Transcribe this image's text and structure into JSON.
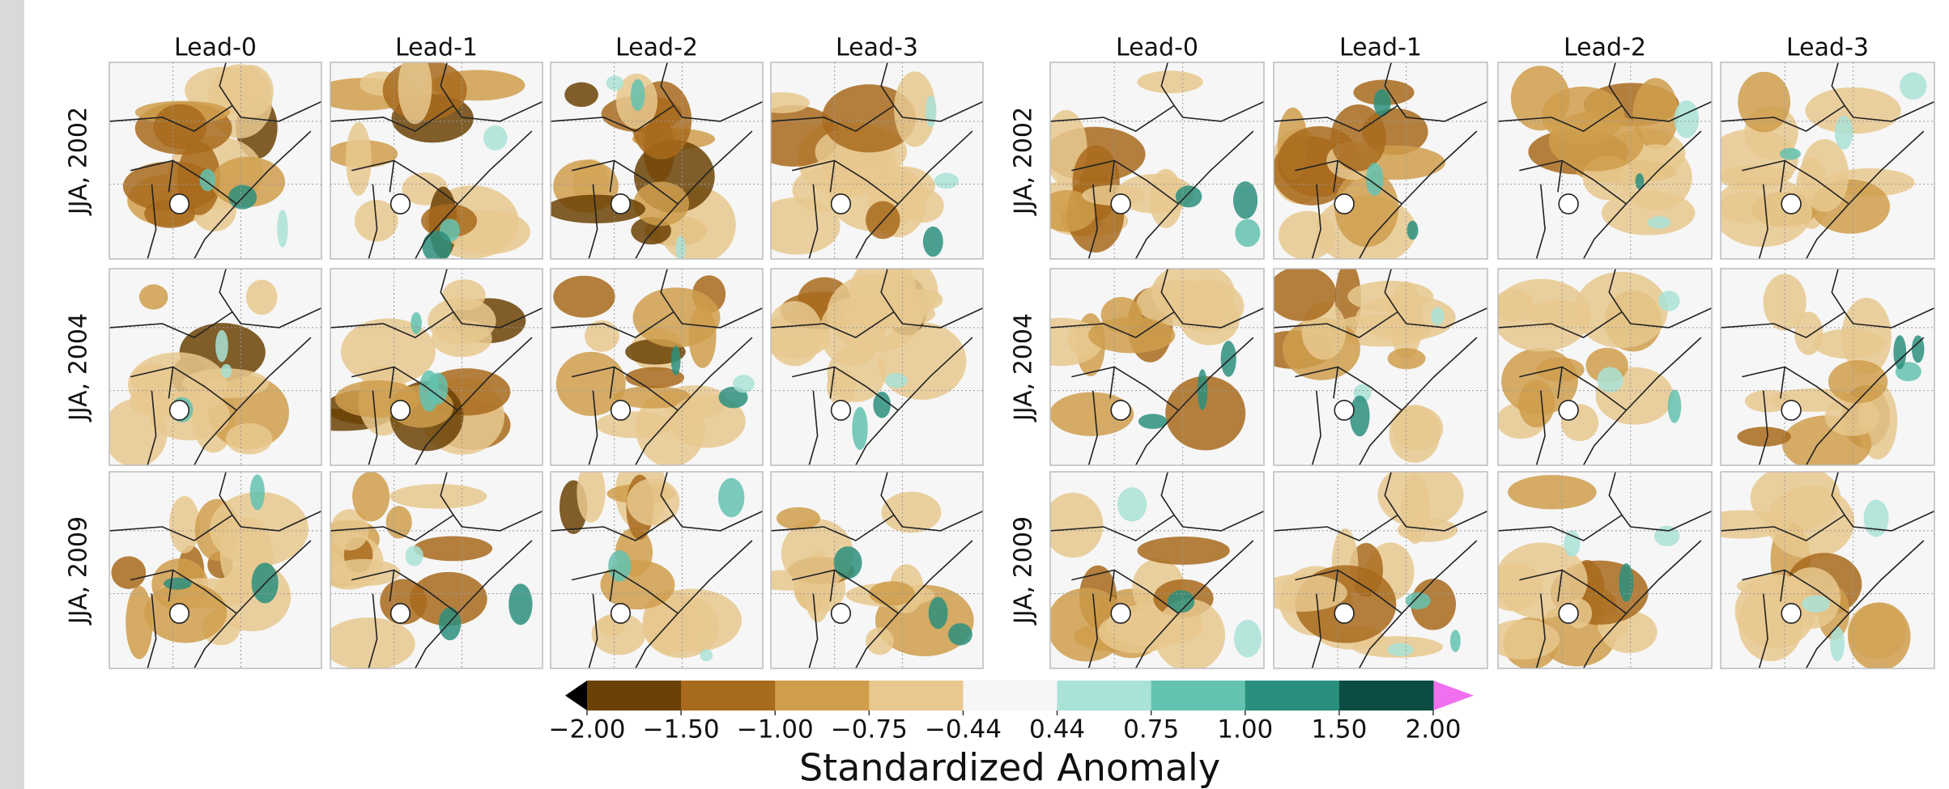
{
  "figure": {
    "groups": [
      {
        "columns": [
          "Lead-0",
          "Lead-1",
          "Lead-2",
          "Lead-3"
        ],
        "rows": [
          "JJA, 2002",
          "JJA, 2004",
          "JJA, 2009"
        ]
      },
      {
        "columns": [
          "Lead-0",
          "Lead-1",
          "Lead-2",
          "Lead-3"
        ],
        "rows": [
          "JJA, 2002",
          "JJA, 2004",
          "JJA, 2009"
        ]
      }
    ],
    "colorbar": {
      "title": "Standardized Anomaly",
      "ticks": [
        {
          "value": -2,
          "label": "−2.00"
        },
        {
          "value": -1.5,
          "label": "−1.50"
        },
        {
          "value": -1,
          "label": "−1.00"
        },
        {
          "value": -0.75,
          "label": "−0.75"
        },
        {
          "value": -0.44,
          "label": "−0.44"
        },
        {
          "value": 0.44,
          "label": "0.44"
        },
        {
          "value": 0.75,
          "label": "0.75"
        },
        {
          "value": 1,
          "label": "1.00"
        },
        {
          "value": 1.5,
          "label": "1.50"
        },
        {
          "value": 2,
          "label": "2.00"
        }
      ],
      "colors": [
        "#6b4205",
        "#a86a1c",
        "#cf9d4c",
        "#e8c88e",
        "#f6f6f6",
        "#a9e2d6",
        "#63c2b0",
        "#2b8f7e",
        "#0c4d43"
      ],
      "under_color": "#000000",
      "over_color": "#f070f0"
    }
  }
}
